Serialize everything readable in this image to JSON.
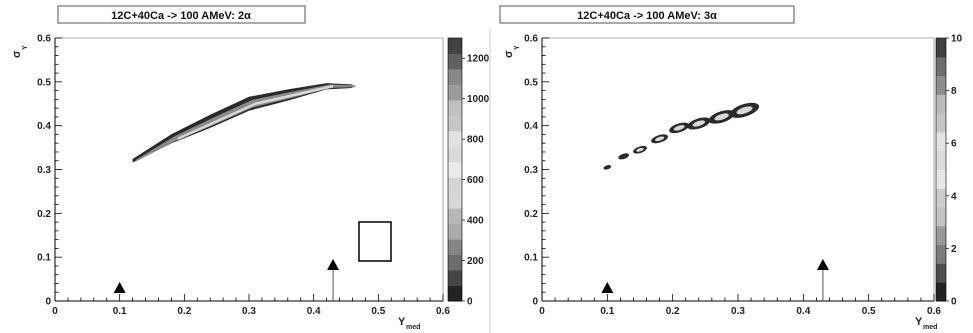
{
  "panels": [
    {
      "title": "12C+40Ca -> 100 AMeV: 2α",
      "x_label": "Y",
      "x_sub": "med",
      "y_label": "σ",
      "y_sub": "Y",
      "colorbar_ticks": [
        "0",
        "200",
        "400",
        "600",
        "800",
        "1000",
        "1200"
      ]
    },
    {
      "title": "12C+40Ca -> 100 AMeV: 3α",
      "x_label": "Y",
      "x_sub": "med",
      "y_label": "σ",
      "y_sub": "Y",
      "colorbar_ticks": [
        "0",
        "2",
        "4",
        "6",
        "8",
        "10"
      ]
    }
  ],
  "chart_data": [
    {
      "type": "heatmap",
      "title": "12C+40Ca -> 100 AMeV: 2α",
      "xlabel": "Y_med",
      "ylabel": "σ_Y",
      "xlim": [
        0,
        0.6
      ],
      "ylim": [
        0,
        0.6
      ],
      "x_ticks": [
        "0",
        "0.1",
        "0.2",
        "0.3",
        "0.4",
        "0.5",
        "0.6"
      ],
      "y_ticks": [
        "0",
        "0.1",
        "0.2",
        "0.3",
        "0.4",
        "0.5",
        "0.6"
      ],
      "colorbar_range": [
        0,
        1300
      ],
      "ridge": [
        {
          "x": 0.12,
          "y": 0.32
        },
        {
          "x": 0.18,
          "y": 0.37
        },
        {
          "x": 0.24,
          "y": 0.41
        },
        {
          "x": 0.3,
          "y": 0.45
        },
        {
          "x": 0.36,
          "y": 0.47
        },
        {
          "x": 0.42,
          "y": 0.49
        },
        {
          "x": 0.46,
          "y": 0.49
        }
      ],
      "markers": [
        {
          "x": 0.1,
          "y": 0.0
        },
        {
          "x": 0.43,
          "y": 0.0
        }
      ]
    },
    {
      "type": "heatmap",
      "title": "12C+40Ca -> 100 AMeV: 3α",
      "xlabel": "Y_med",
      "ylabel": "σ_Y",
      "xlim": [
        0,
        0.6
      ],
      "ylim": [
        0,
        0.6
      ],
      "x_ticks": [
        "0",
        "0.1",
        "0.2",
        "0.3",
        "0.4",
        "0.5",
        "0.6"
      ],
      "y_ticks": [
        "0",
        "0.1",
        "0.2",
        "0.3",
        "0.4",
        "0.5",
        "0.6"
      ],
      "colorbar_range": [
        0,
        10
      ],
      "clusters": [
        {
          "x": 0.1,
          "y": 0.305
        },
        {
          "x": 0.125,
          "y": 0.33
        },
        {
          "x": 0.15,
          "y": 0.345
        },
        {
          "x": 0.18,
          "y": 0.37
        },
        {
          "x": 0.21,
          "y": 0.395
        },
        {
          "x": 0.24,
          "y": 0.405
        },
        {
          "x": 0.275,
          "y": 0.42
        },
        {
          "x": 0.31,
          "y": 0.435
        }
      ],
      "markers": [
        {
          "x": 0.1,
          "y": 0.0
        },
        {
          "x": 0.43,
          "y": 0.0
        }
      ]
    }
  ],
  "colors": {
    "axis": "#000000",
    "frame": "#777777",
    "band_dark": "#2a2a2a",
    "band_mid": "#8a8a8a",
    "band_light": "#d8d8d8"
  }
}
